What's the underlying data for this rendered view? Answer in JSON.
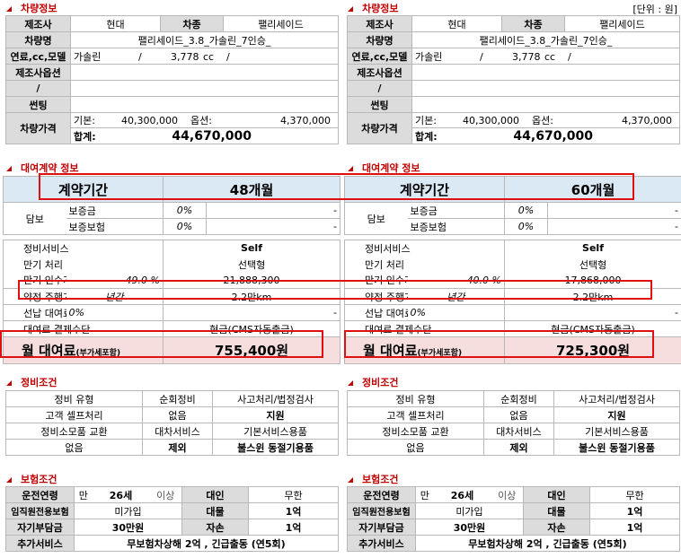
{
  "panels": [
    {
      "id": "left",
      "vehicle_title": "차량정보",
      "unit_note": "",
      "vehicle": {
        "maker_label": "제조사",
        "maker": "현대",
        "model_label": "차종",
        "model": "팰리세이드",
        "name_label": "차량명",
        "name": "팰리세이드_3.8_가솔린_7인승_",
        "fuel_label": "연료,cc,모델",
        "fuel": "가솔린",
        "slash1": "/",
        "cc": "3,778",
        "cc_unit": "cc",
        "slash2": "/",
        "option_label": "제조사옵션",
        "slash_label": "/",
        "tinting_label": "썬팅",
        "price_label": "차량가격",
        "base_label": "기본:",
        "base": "40,300,000",
        "opt_label": "옵션:",
        "opt": "4,370,000",
        "total_label": "합계:",
        "total": "44,670,000"
      },
      "contract_title": "대여계약 정보",
      "contract": {
        "period_label": "계약기간",
        "period": "48개월",
        "guarantee_label": "담보",
        "deposit_label": "보증금",
        "deposit_pct": "0%",
        "deposit_val": "-",
        "insurance_label": "보증보험",
        "insurance_pct": "0%",
        "insurance_val": "-",
        "maintenance_label": "정비서비스",
        "maintenance": "Self",
        "expiry_label": "만기 처리",
        "expiry": "선택형",
        "takeover_label": "만기 인수가",
        "takeover_pct": "49.0 %",
        "takeover": "21,888,300",
        "mileage_label": "약정 주행거리",
        "mileage_unit": "년간",
        "mileage": "2.2만km",
        "prepay_label": "선납 대여료",
        "prepay_pct": "0%",
        "prepay_val": "-",
        "payment_label": "대여료 결제수단",
        "payment": "현금(CMS자동출금)",
        "monthly_label": "월 대여료",
        "monthly_note": "(부가세포함)",
        "monthly": "755,400원"
      },
      "maint_title": "정비조건",
      "maint": {
        "type_label": "정비 유형",
        "type_val": "순회정비",
        "accident_label": "사고처리/법정검사",
        "self_label": "고객 셀프처리",
        "self_val": "없음",
        "support": "지원",
        "consumable_label": "정비소모품 교환",
        "rental_label": "대차서비스",
        "basic_label": "기본서비스용품",
        "none": "없음",
        "exclude": "제외",
        "unsound": "불스윈 동절기용품"
      },
      "ins_title": "보험조건",
      "ins": {
        "age_label": "운전연령",
        "age_pre": "만",
        "age": "26세",
        "age_post": "이상",
        "bodily_label": "대인",
        "bodily": "무한",
        "exec_label": "임직원전용보험",
        "exec": "미가입",
        "property_label": "대물",
        "property": "1억",
        "deduct_label": "자기부담금",
        "deduct": "30만원",
        "selfdmg_label": "자손",
        "selfdmg": "1억",
        "extra_label": "추가서비스",
        "extra": "무보험차상해 2억 , 긴급출동 (연5회)"
      }
    },
    {
      "id": "right",
      "vehicle_title": "차량정보",
      "unit_note": "[단위 : 원]",
      "vehicle": {
        "maker_label": "제조사",
        "maker": "현대",
        "model_label": "차종",
        "model": "팰리세이드",
        "name_label": "차량명",
        "name": "팰리세이드_3.8_가솔린_7인승_",
        "fuel_label": "연료,cc,모델",
        "fuel": "가솔린",
        "slash1": "/",
        "cc": "3,778",
        "cc_unit": "cc",
        "slash2": "/",
        "option_label": "제조사옵션",
        "slash_label": "/",
        "tinting_label": "썬팅",
        "price_label": "차량가격",
        "base_label": "기본:",
        "base": "40,300,000",
        "opt_label": "옵션:",
        "opt": "4,370,000",
        "total_label": "합계:",
        "total": "44,670,000"
      },
      "contract_title": "대여계약 정보",
      "contract": {
        "period_label": "계약기간",
        "period": "60개월",
        "guarantee_label": "담보",
        "deposit_label": "보증금",
        "deposit_pct": "0%",
        "deposit_val": "-",
        "insurance_label": "보증보험",
        "insurance_pct": "0%",
        "insurance_val": "-",
        "maintenance_label": "정비서비스",
        "maintenance": "Self",
        "expiry_label": "만기 처리",
        "expiry": "선택형",
        "takeover_label": "만기 인수가",
        "takeover_pct": "40.0 %",
        "takeover": "17,868,000",
        "mileage_label": "약정 주행거리",
        "mileage_unit": "년간",
        "mileage": "2.2만km",
        "prepay_label": "선납 대여료",
        "prepay_pct": "0%",
        "prepay_val": "-",
        "payment_label": "대여료 결제수단",
        "payment": "현금(CMS자동출금)",
        "monthly_label": "월 대여료",
        "monthly_note": "(부가세포함)",
        "monthly": "725,300원"
      },
      "maint_title": "정비조건",
      "maint": {
        "type_label": "정비 유형",
        "type_val": "순회정비",
        "accident_label": "사고처리/법정검사",
        "self_label": "고객 셀프처리",
        "self_val": "없음",
        "support": "지원",
        "consumable_label": "정비소모품 교환",
        "rental_label": "대차서비스",
        "basic_label": "기본서비스용품",
        "none": "없음",
        "exclude": "제외",
        "unsound": "불스윈 동절기용품"
      },
      "ins_title": "보험조건",
      "ins": {
        "age_label": "운전연령",
        "age_pre": "만",
        "age": "26세",
        "age_post": "이상",
        "bodily_label": "대인",
        "bodily": "무한",
        "exec_label": "임직원전용보험",
        "exec": "미가입",
        "property_label": "대물",
        "property": "1억",
        "deduct_label": "자기부담금",
        "deduct": "30만원",
        "selfdmg_label": "자손",
        "selfdmg": "1억",
        "extra_label": "추가서비스",
        "extra": "무보험차상해 2억 , 긴급출동 (연5회)"
      }
    }
  ]
}
